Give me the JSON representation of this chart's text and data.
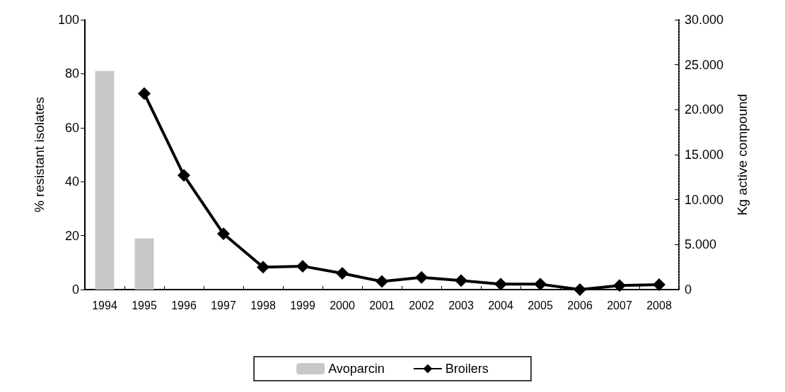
{
  "chart_data": {
    "type": "bar",
    "ylabel": "% resistant isolates",
    "y2label": "Kg active compound",
    "categories": [
      "1994",
      "1995",
      "1996",
      "1997",
      "1998",
      "1999",
      "2000",
      "2001",
      "2002",
      "2003",
      "2004",
      "2005",
      "2006",
      "2007",
      "2008"
    ],
    "series": [
      {
        "name": "Avoparcin",
        "color": "#c8c8c8",
        "values": [
          81,
          19,
          null,
          null,
          null,
          null,
          null,
          null,
          null,
          null,
          null,
          null,
          null,
          null,
          null
        ]
      },
      {
        "name": "Broilers",
        "type": "line",
        "axis": "y2",
        "color": "#000000",
        "marker": "diamond",
        "values": [
          null,
          21800,
          12700,
          6200,
          2500,
          2600,
          1800,
          900,
          1350,
          1000,
          600,
          600,
          0,
          450,
          550
        ]
      }
    ],
    "ylim": [
      0,
      100
    ],
    "yticks": [
      0,
      20,
      40,
      60,
      80,
      100
    ],
    "y2lim": [
      0,
      30000
    ],
    "y2ticks": [
      0,
      {
        "value": 5000,
        "label": "5.000"
      },
      {
        "value": 10000,
        "label": "10.000"
      },
      {
        "value": 15000,
        "label": "15.000"
      },
      {
        "value": 20000,
        "label": "20.000"
      },
      {
        "value": 25000,
        "label": "25.000"
      },
      {
        "value": 30000,
        "label": "30.000"
      }
    ],
    "legend": "bottom",
    "grid": false
  }
}
